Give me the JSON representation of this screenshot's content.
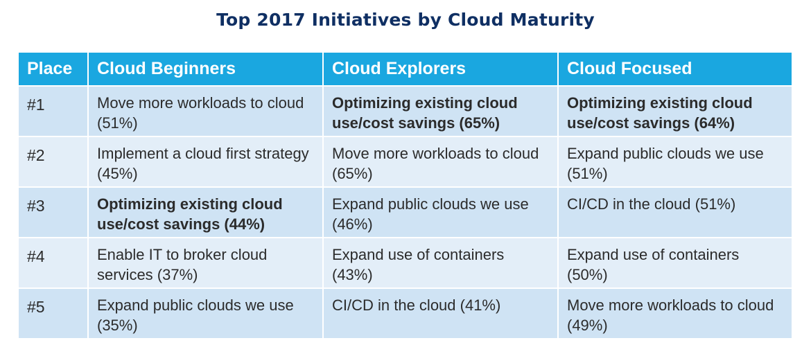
{
  "chart_data": {
    "type": "table",
    "title": "Top 2017 Initiatives by Cloud Maturity",
    "columns": [
      "Place",
      "Cloud Beginners",
      "Cloud Explorers",
      "Cloud Focused"
    ],
    "rows": [
      {
        "place": "#1",
        "cells": [
          {
            "text": "Move more workloads to cloud (51%)",
            "emphasis": false
          },
          {
            "text": "Optimizing existing cloud use/cost savings (65%)",
            "emphasis": true
          },
          {
            "text": "Optimizing existing cloud use/cost savings (64%)",
            "emphasis": true
          }
        ]
      },
      {
        "place": "#2",
        "cells": [
          {
            "text": "Implement a cloud first strategy (45%)",
            "emphasis": false
          },
          {
            "text": "Move more workloads to cloud (65%)",
            "emphasis": false
          },
          {
            "text": "Expand public clouds we use (51%)",
            "emphasis": false
          }
        ]
      },
      {
        "place": "#3",
        "cells": [
          {
            "text": "Optimizing existing cloud use/cost savings (44%)",
            "emphasis": true
          },
          {
            "text": "Expand public clouds we use (46%)",
            "emphasis": false
          },
          {
            "text": "CI/CD in the cloud (51%)",
            "emphasis": false
          }
        ]
      },
      {
        "place": "#4",
        "cells": [
          {
            "text": "Enable IT to broker cloud services (37%)",
            "emphasis": false
          },
          {
            "text": "Expand use of containers (43%)",
            "emphasis": false
          },
          {
            "text": "Expand use of containers (50%)",
            "emphasis": false
          }
        ]
      },
      {
        "place": "#5",
        "cells": [
          {
            "text": "Expand public clouds we use (35%)",
            "emphasis": false
          },
          {
            "text": "CI/CD in the cloud (41%)",
            "emphasis": false
          },
          {
            "text": "Move more workloads to cloud (49%)",
            "emphasis": false
          }
        ]
      }
    ]
  },
  "colors": {
    "title": "#0f2f63",
    "header_bg": "#1aa7e0",
    "header_text": "#ffffff",
    "row_odd_bg": "#cfe3f4",
    "row_even_bg": "#e3eef8",
    "cell_text": "#2b2b2b"
  }
}
